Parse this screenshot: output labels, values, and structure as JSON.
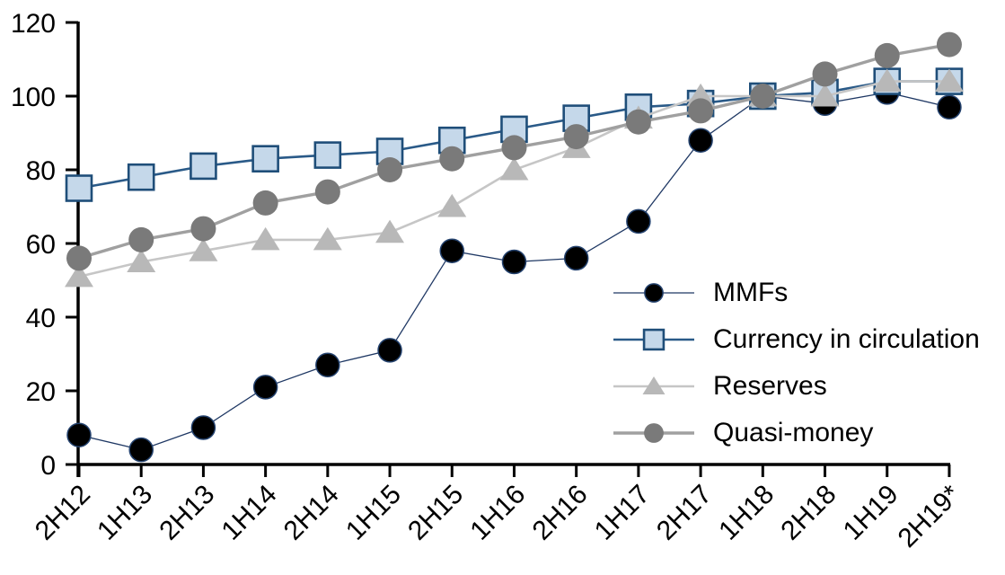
{
  "chart_data": {
    "type": "line",
    "categories": [
      "2H12",
      "1H13",
      "2H13",
      "1H14",
      "2H14",
      "1H15",
      "2H15",
      "1H16",
      "2H16",
      "1H17",
      "2H17",
      "1H18",
      "2H18",
      "1H19",
      "2H19*"
    ],
    "series": [
      {
        "name": "MMFs",
        "marker": "circle",
        "marker_size": 26,
        "color": "#000000",
        "marker_stroke": "#24426e",
        "marker_stroke_width": 1.5,
        "line_color": "#1f3864",
        "line_width": 1.3,
        "values": [
          8,
          4,
          10,
          21,
          27,
          31,
          58,
          55,
          56,
          66,
          88,
          100,
          98,
          101,
          97
        ]
      },
      {
        "name": "Currency in circulation",
        "marker": "square",
        "marker_size": 28,
        "color": "#c5d8ea",
        "marker_stroke": "#1f4e79",
        "marker_stroke_width": 2.6,
        "line_color": "#2a5a88",
        "line_width": 2.6,
        "values": [
          75,
          78,
          81,
          83,
          84,
          85,
          88,
          91,
          94,
          97,
          98,
          100,
          101,
          104,
          104
        ]
      },
      {
        "name": "Reserves",
        "marker": "triangle",
        "marker_size": 32,
        "color": "#b8b8b8",
        "marker_stroke": "none",
        "marker_stroke_width": 0,
        "line_color": "#c6c6c6",
        "line_width": 2.6,
        "values": [
          51,
          55,
          58,
          61,
          61,
          63,
          70,
          80,
          86,
          94,
          100,
          100,
          100,
          104,
          104
        ]
      },
      {
        "name": "Quasi-money",
        "marker": "circle",
        "marker_size": 28,
        "color": "#7a7a7a",
        "marker_stroke": "none",
        "marker_stroke_width": 0,
        "line_color": "#a0a0a0",
        "line_width": 3.4,
        "values": [
          56,
          61,
          64,
          71,
          74,
          80,
          83,
          86,
          89,
          93,
          96,
          100,
          106,
          111,
          114
        ]
      }
    ],
    "title": "",
    "xlabel": "",
    "ylabel": "",
    "ylim": [
      0,
      120
    ],
    "yticks": [
      0,
      20,
      40,
      60,
      80,
      100,
      120
    ],
    "grid": false,
    "legend_position": "middle-right",
    "axis_color": "#000000",
    "tick_label_color": "#000000"
  }
}
